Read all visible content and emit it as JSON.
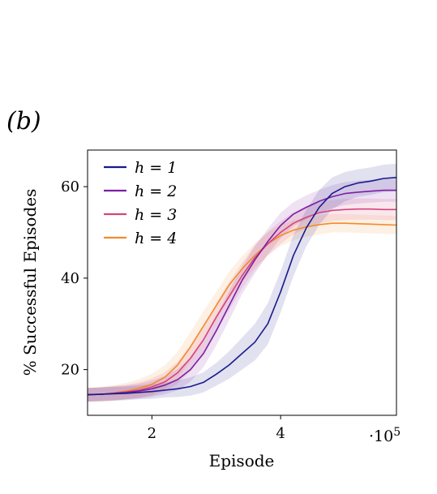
{
  "panel_label": "(b)",
  "chart_data": {
    "type": "line",
    "xlabel": "Episode",
    "ylabel": "% Successful Episodes",
    "x_scale_label": "·10",
    "x_scale_exponent": "5",
    "xlim": [
      1,
      5.8
    ],
    "ylim": [
      10,
      68
    ],
    "xticks": [
      2,
      4
    ],
    "yticks": [
      20,
      40,
      60
    ],
    "legend_position": "top-left",
    "grid": false,
    "x": [
      1.0,
      1.2,
      1.4,
      1.6,
      1.8,
      2.0,
      2.2,
      2.4,
      2.6,
      2.8,
      3.0,
      3.2,
      3.4,
      3.6,
      3.8,
      4.0,
      4.2,
      4.4,
      4.6,
      4.8,
      5.0,
      5.2,
      5.4,
      5.6,
      5.8
    ],
    "series": [
      {
        "name": "h = 1",
        "color": "#1a1a8c",
        "values": [
          14.5,
          14.6,
          14.7,
          14.8,
          15.0,
          15.2,
          15.5,
          15.8,
          16.3,
          17.2,
          19.0,
          21.0,
          23.5,
          26.0,
          30.0,
          37.0,
          45.0,
          51.0,
          55.5,
          58.5,
          60.0,
          60.8,
          61.2,
          61.8,
          62.0
        ],
        "band": [
          1.5,
          1.5,
          1.5,
          1.5,
          1.5,
          1.6,
          1.6,
          1.8,
          2.0,
          2.2,
          2.5,
          3.0,
          3.5,
          4.0,
          4.5,
          4.5,
          4.5,
          4.0,
          3.8,
          3.5,
          3.2,
          3.0,
          3.0,
          3.0,
          3.0
        ]
      },
      {
        "name": "h = 2",
        "color": "#7b1fa2",
        "values": [
          14.5,
          14.6,
          14.8,
          15.0,
          15.3,
          15.8,
          16.6,
          17.8,
          20.0,
          23.5,
          28.5,
          34.0,
          39.5,
          44.0,
          48.0,
          51.5,
          54.0,
          55.5,
          56.8,
          57.8,
          58.5,
          58.8,
          59.0,
          59.2,
          59.2
        ],
        "band": [
          1.5,
          1.5,
          1.5,
          1.5,
          1.6,
          1.8,
          2.0,
          2.3,
          2.6,
          3.0,
          3.2,
          3.2,
          3.0,
          3.0,
          2.8,
          2.8,
          2.6,
          2.6,
          2.5,
          2.5,
          2.5,
          2.5,
          2.5,
          2.5,
          2.5
        ]
      },
      {
        "name": "h = 3",
        "color": "#d6457c",
        "values": [
          14.5,
          14.6,
          14.8,
          15.1,
          15.5,
          16.2,
          17.3,
          19.3,
          22.5,
          26.5,
          31.5,
          36.0,
          40.5,
          44.5,
          47.5,
          50.0,
          52.0,
          53.3,
          54.3,
          54.8,
          55.0,
          55.1,
          55.1,
          55.0,
          55.0
        ],
        "band": [
          1.5,
          1.5,
          1.6,
          1.6,
          1.7,
          1.9,
          2.1,
          2.4,
          2.8,
          3.0,
          3.0,
          3.0,
          2.8,
          2.8,
          2.6,
          2.5,
          2.4,
          2.4,
          2.3,
          2.3,
          2.3,
          2.3,
          2.3,
          2.3,
          2.3
        ]
      },
      {
        "name": "h = 4",
        "color": "#f28b2c",
        "values": [
          14.5,
          14.6,
          14.9,
          15.3,
          15.9,
          16.8,
          18.3,
          21.0,
          25.0,
          29.5,
          34.0,
          38.5,
          42.0,
          45.0,
          47.5,
          49.3,
          50.5,
          51.2,
          51.7,
          52.0,
          52.0,
          51.9,
          51.8,
          51.7,
          51.6
        ],
        "band": [
          1.5,
          1.6,
          1.7,
          1.8,
          2.0,
          2.3,
          2.6,
          2.9,
          3.2,
          3.2,
          3.0,
          2.9,
          2.8,
          2.6,
          2.5,
          2.3,
          2.2,
          2.1,
          2.1,
          2.0,
          2.0,
          2.0,
          2.0,
          2.0,
          2.0
        ]
      }
    ]
  }
}
